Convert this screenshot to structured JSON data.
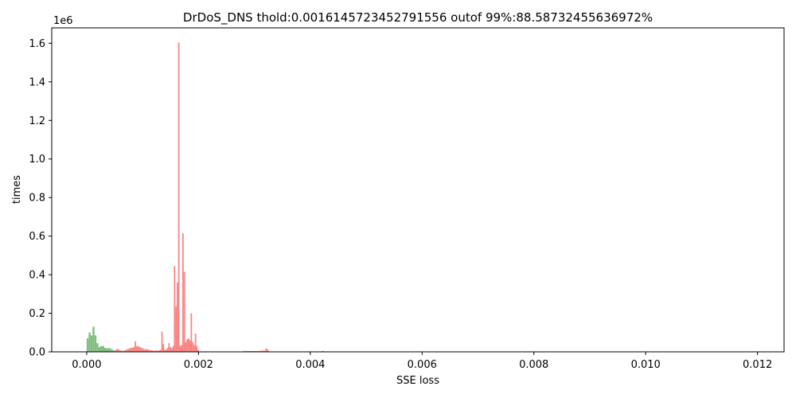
{
  "chart_data": {
    "type": "bar",
    "title": "DrDoS_DNS thold:0.0016145723452791556 outof 99%:88.58732455636972%",
    "xlabel": "SSE loss",
    "ylabel": "times",
    "y_multiplier_label": "1e6",
    "xlim": [
      -0.000625,
      0.012475
    ],
    "ylim": [
      0,
      1.68
    ],
    "x_ticks": [
      "0.000",
      "0.002",
      "0.004",
      "0.006",
      "0.008",
      "0.010",
      "0.012"
    ],
    "x_tick_values": [
      0,
      0.002,
      0.004,
      0.006,
      0.008,
      0.01,
      0.012
    ],
    "y_ticks": [
      "0.0",
      "0.2",
      "0.4",
      "0.6",
      "0.8",
      "1.0",
      "1.2",
      "1.4",
      "1.6"
    ],
    "y_tick_values": [
      0,
      0.2,
      0.4,
      0.6,
      0.8,
      1.0,
      1.2,
      1.4,
      1.6
    ],
    "grid": false,
    "legend": "none",
    "series": [
      {
        "color": "#f98383",
        "bins": [
          [
            0.00051,
            0.000535,
            0.01
          ],
          [
            0.000535,
            0.00056,
            0.015
          ],
          [
            0.00056,
            0.000585,
            0.012
          ],
          [
            0.000585,
            0.00061,
            0.008
          ],
          [
            0.00061,
            0.000635,
            0.006
          ],
          [
            0.000635,
            0.00066,
            0.005
          ],
          [
            0.00066,
            0.000685,
            0.006
          ],
          [
            0.000685,
            0.00071,
            0.01
          ],
          [
            0.00071,
            0.000735,
            0.012
          ],
          [
            0.000735,
            0.00076,
            0.015
          ],
          [
            0.00076,
            0.000785,
            0.018
          ],
          [
            0.000785,
            0.00081,
            0.02
          ],
          [
            0.00081,
            0.000835,
            0.022
          ],
          [
            0.000835,
            0.00086,
            0.025
          ],
          [
            0.00086,
            0.000885,
            0.055
          ],
          [
            0.000885,
            0.00091,
            0.03
          ],
          [
            0.00091,
            0.000935,
            0.028
          ],
          [
            0.000935,
            0.00096,
            0.025
          ],
          [
            0.00096,
            0.000985,
            0.022
          ],
          [
            0.000985,
            0.00101,
            0.018
          ],
          [
            0.00101,
            0.001035,
            0.015
          ],
          [
            0.001035,
            0.00106,
            0.012
          ],
          [
            0.00106,
            0.001085,
            0.015
          ],
          [
            0.001085,
            0.00111,
            0.012
          ],
          [
            0.00111,
            0.001135,
            0.01
          ],
          [
            0.001135,
            0.00116,
            0.008
          ],
          [
            0.00116,
            0.001185,
            0.008
          ],
          [
            0.001185,
            0.00121,
            0.006
          ],
          [
            0.00121,
            0.001235,
            0.006
          ],
          [
            0.001235,
            0.00126,
            0.008
          ],
          [
            0.00126,
            0.001285,
            0.006
          ],
          [
            0.001285,
            0.00131,
            0.008
          ],
          [
            0.00131,
            0.001335,
            0.01
          ],
          [
            0.001335,
            0.00136,
            0.105
          ],
          [
            0.00136,
            0.001385,
            0.04
          ],
          [
            0.001385,
            0.00141,
            0.01
          ],
          [
            0.00141,
            0.001435,
            0.012
          ],
          [
            0.001435,
            0.00146,
            0.02
          ],
          [
            0.00146,
            0.001485,
            0.045
          ],
          [
            0.001485,
            0.00151,
            0.025
          ],
          [
            0.00151,
            0.001535,
            0.018
          ],
          [
            0.001535,
            0.00156,
            0.03
          ],
          [
            0.00156,
            0.001585,
            0.445
          ],
          [
            0.001585,
            0.00161,
            0.235
          ],
          [
            0.00161,
            0.001635,
            0.36
          ],
          [
            0.001635,
            0.00166,
            1.605
          ],
          [
            0.00166,
            0.001685,
            0.03
          ],
          [
            0.001685,
            0.00171,
            0.035
          ],
          [
            0.00171,
            0.001735,
            0.615
          ],
          [
            0.001735,
            0.00176,
            0.415
          ],
          [
            0.00176,
            0.001785,
            0.05
          ],
          [
            0.001785,
            0.00181,
            0.065
          ],
          [
            0.00181,
            0.001835,
            0.07
          ],
          [
            0.001835,
            0.00186,
            0.06
          ],
          [
            0.00186,
            0.001885,
            0.2
          ],
          [
            0.001885,
            0.00191,
            0.05
          ],
          [
            0.00191,
            0.001935,
            0.035
          ],
          [
            0.001935,
            0.00196,
            0.095
          ],
          [
            0.00196,
            0.001985,
            0.03
          ],
          [
            0.001985,
            0.00201,
            0.01
          ],
          [
            0.0028,
            0.0031,
            0.004
          ],
          [
            0.0031,
            0.0032,
            0.006
          ],
          [
            0.0032,
            0.003225,
            0.018
          ],
          [
            0.003225,
            0.00325,
            0.012
          ],
          [
            0.00325,
            0.00327,
            0.004
          ]
        ]
      },
      {
        "color": "#80bf80",
        "bins": [
          [
            0.0,
            3.5e-05,
            0.07
          ],
          [
            3.5e-05,
            7e-05,
            0.1
          ],
          [
            7e-05,
            0.000105,
            0.085
          ],
          [
            0.000105,
            0.00014,
            0.13
          ],
          [
            0.00014,
            0.000175,
            0.085
          ],
          [
            0.000175,
            0.00021,
            0.045
          ],
          [
            0.00021,
            0.000245,
            0.025
          ],
          [
            0.000245,
            0.00028,
            0.03
          ],
          [
            0.00028,
            0.000315,
            0.03
          ],
          [
            0.000315,
            0.00035,
            0.02
          ],
          [
            0.00035,
            0.000385,
            0.018
          ],
          [
            0.000385,
            0.00042,
            0.02
          ],
          [
            0.00042,
            0.000455,
            0.015
          ],
          [
            0.000455,
            0.00049,
            0.01
          ],
          [
            0.00049,
            0.000525,
            0.006
          ],
          [
            0.000525,
            0.00056,
            0.004
          ],
          [
            0.0042,
            0.00424,
            0.004
          ]
        ]
      }
    ]
  }
}
